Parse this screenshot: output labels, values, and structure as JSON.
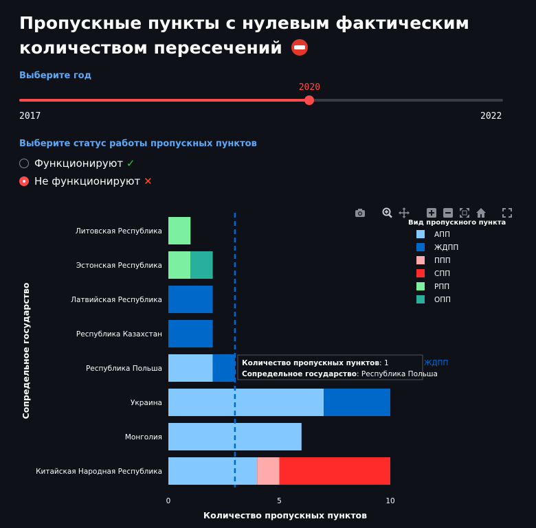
{
  "header": {
    "title": "Пропускные пункты с нулевым фактическим количеством пересечений"
  },
  "year_slider": {
    "label": "Выберите год",
    "min": 2017,
    "max": 2022,
    "value": 2020,
    "min_label": "2017",
    "max_label": "2022",
    "value_label": "2020"
  },
  "status_radio": {
    "label": "Выберите статус работы пропускных пунктов",
    "options": [
      {
        "label": "Функционируют",
        "mark": "✓",
        "checked": false
      },
      {
        "label": "Не функционируют",
        "mark": "✕",
        "checked": true
      }
    ]
  },
  "toolbar": {
    "icons": [
      "camera-icon",
      "zoom-icon",
      "pan-icon",
      "zoom-in-icon",
      "zoom-out-icon",
      "autoscale-icon",
      "home-icon",
      "fullscreen-icon"
    ]
  },
  "colors": {
    "АПП": "#83c9ff",
    "ЖДПП": "#0068c9",
    "ППП": "#ffabab",
    "СПП": "#ff2b2b",
    "РПП": "#7defa1",
    "ОПП": "#29b09d"
  },
  "chart_data": {
    "type": "bar",
    "orientation": "horizontal",
    "barmode": "stack",
    "categories": [
      "Литовская Республика",
      "Эстонская Республика",
      "Латвийская Республика",
      "Республика Казахстан",
      "Республика Польша",
      "Украина",
      "Монголия",
      "Китайская Народная Республика"
    ],
    "series": [
      {
        "name": "АПП",
        "values": [
          0,
          0,
          0,
          0,
          2,
          7,
          6,
          4
        ]
      },
      {
        "name": "ЖДПП",
        "values": [
          0,
          0,
          2,
          2,
          1,
          3,
          0,
          0
        ]
      },
      {
        "name": "ППП",
        "values": [
          0,
          0,
          0,
          0,
          0,
          0,
          0,
          1
        ]
      },
      {
        "name": "СПП",
        "values": [
          0,
          0,
          0,
          0,
          0,
          0,
          0,
          5
        ]
      },
      {
        "name": "РПП",
        "values": [
          1,
          1,
          0,
          0,
          0,
          0,
          0,
          0
        ]
      },
      {
        "name": "ОПП",
        "values": [
          0,
          1,
          0,
          0,
          0,
          0,
          0,
          0
        ]
      }
    ],
    "xlabel": "Количество пропускных пунктов",
    "ylabel": "Сопредельное государство",
    "xlim": [
      0,
      11
    ],
    "xticks": [
      0,
      5,
      10
    ],
    "reference_line_x": 3,
    "legend": {
      "title": "Вид пропускного пункта",
      "position": "top-right"
    },
    "tooltip": {
      "line1_key": "Количество пропускных пунктов",
      "line1_value": "1",
      "line2_key": "Сопредельное государство",
      "line2_value": "Республика Польша",
      "trace_name": "ЖДПП"
    }
  }
}
